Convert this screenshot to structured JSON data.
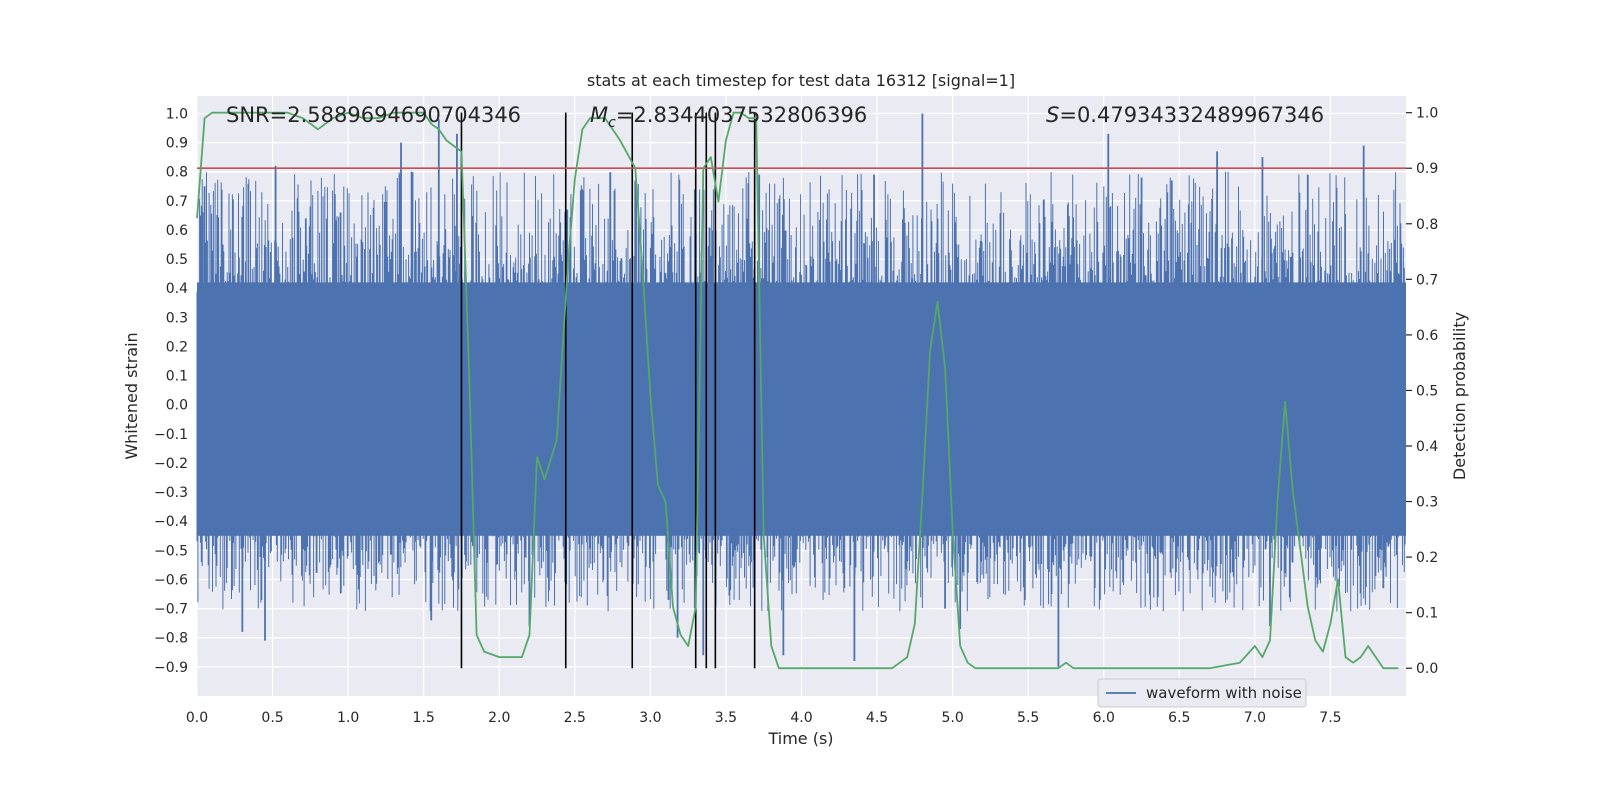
{
  "chart_data": {
    "type": "line",
    "title": "stats at each timestep for test data 16312 [signal=1]",
    "xlabel": "Time (s)",
    "ylabel": "Whitened strain",
    "y2label": "Detection probability",
    "xlim": [
      0.0,
      8.0
    ],
    "ylim": [
      -1.0,
      1.06
    ],
    "y2lim": [
      -0.05,
      1.03
    ],
    "x_ticks": [
      "0.0",
      "0.5",
      "1.0",
      "1.5",
      "2.0",
      "2.5",
      "3.0",
      "3.5",
      "4.0",
      "4.5",
      "5.0",
      "5.5",
      "6.0",
      "6.5",
      "7.0",
      "7.5"
    ],
    "y_ticks": [
      "1.0",
      "0.9",
      "0.8",
      "0.7",
      "0.6",
      "0.5",
      "0.4",
      "0.3",
      "0.2",
      "0.1",
      "0.0",
      "−0.1",
      "−0.2",
      "−0.3",
      "−0.4",
      "−0.5",
      "−0.6",
      "−0.7",
      "−0.8",
      "−0.9"
    ],
    "y2_ticks": [
      "1.0",
      "0.9",
      "0.8",
      "0.7",
      "0.6",
      "0.5",
      "0.4",
      "0.3",
      "0.2",
      "0.1",
      "0.0"
    ],
    "grid": true,
    "legend_placement": "lower-right",
    "annotations": {
      "snr": "SNR=2.5889694690704346",
      "mc_symbol": "M",
      "mc_sub": "c",
      "mc_value": "=2.8344037532806396",
      "s_symbol": "S",
      "s_value": "=0.47934332489967346"
    },
    "series": [
      {
        "name": "waveform with noise",
        "axis": "left",
        "style": "dense-noise",
        "color": "#4c72b0",
        "band": [
          -0.45,
          0.42
        ],
        "envelope_peaks": [
          {
            "x": 0.05,
            "y": 0.75
          },
          {
            "x": 0.17,
            "y": 0.55
          },
          {
            "x": 0.3,
            "y": -0.78
          },
          {
            "x": 0.45,
            "y": -0.81
          },
          {
            "x": 0.52,
            "y": 0.82
          },
          {
            "x": 0.72,
            "y": 0.64
          },
          {
            "x": 0.95,
            "y": 0.66
          },
          {
            "x": 1.35,
            "y": 0.9
          },
          {
            "x": 1.42,
            "y": 0.8
          },
          {
            "x": 1.6,
            "y": 0.98
          },
          {
            "x": 1.72,
            "y": 0.93
          },
          {
            "x": 1.55,
            "y": -0.74
          },
          {
            "x": 2.2,
            "y": -0.76
          },
          {
            "x": 2.45,
            "y": 0.67
          },
          {
            "x": 2.9,
            "y": 0.77
          },
          {
            "x": 3.12,
            "y": -0.67
          },
          {
            "x": 3.18,
            "y": -0.8
          },
          {
            "x": 3.35,
            "y": -0.86
          },
          {
            "x": 3.72,
            "y": 0.79
          },
          {
            "x": 3.88,
            "y": -0.86
          },
          {
            "x": 4.35,
            "y": -0.88
          },
          {
            "x": 4.48,
            "y": 0.79
          },
          {
            "x": 4.95,
            "y": -0.7
          },
          {
            "x": 4.8,
            "y": 1.0
          },
          {
            "x": 5.05,
            "y": -0.77
          },
          {
            "x": 5.7,
            "y": -0.9
          },
          {
            "x": 6.03,
            "y": 0.93
          },
          {
            "x": 6.25,
            "y": 0.78
          },
          {
            "x": 6.45,
            "y": 0.77
          },
          {
            "x": 6.75,
            "y": 0.87
          },
          {
            "x": 7.05,
            "y": 0.85
          },
          {
            "x": 7.1,
            "y": -0.76
          },
          {
            "x": 7.35,
            "y": 0.79
          },
          {
            "x": 7.72,
            "y": 0.89
          },
          {
            "x": 7.85,
            "y": -0.63
          }
        ]
      },
      {
        "name": "",
        "axis": "right",
        "color": "#55a868",
        "x": [
          0.0,
          0.05,
          0.1,
          0.2,
          0.3,
          0.4,
          0.5,
          0.6,
          0.7,
          0.8,
          0.9,
          1.0,
          1.1,
          1.2,
          1.3,
          1.4,
          1.5,
          1.55,
          1.6,
          1.65,
          1.7,
          1.75,
          1.8,
          1.85,
          1.9,
          2.0,
          2.05,
          2.1,
          2.15,
          2.2,
          2.25,
          2.3,
          2.38,
          2.45,
          2.5,
          2.55,
          2.6,
          2.7,
          2.75,
          2.8,
          2.9,
          2.95,
          3.0,
          3.05,
          3.1,
          3.15,
          3.2,
          3.25,
          3.3,
          3.35,
          3.4,
          3.45,
          3.5,
          3.55,
          3.6,
          3.65,
          3.7,
          3.75,
          3.8,
          3.85,
          3.9,
          3.95,
          4.0,
          4.2,
          4.4,
          4.6,
          4.65,
          4.7,
          4.75,
          4.8,
          4.85,
          4.9,
          4.95,
          5.0,
          5.05,
          5.1,
          5.15,
          5.2,
          5.3,
          5.5,
          5.6,
          5.7,
          5.75,
          5.8,
          5.9,
          6.0,
          6.2,
          6.4,
          6.6,
          6.7,
          6.9,
          7.0,
          7.05,
          7.1,
          7.15,
          7.2,
          7.25,
          7.35,
          7.4,
          7.45,
          7.5,
          7.55,
          7.6,
          7.65,
          7.7,
          7.75,
          7.85,
          7.95
        ],
        "values": [
          0.81,
          0.99,
          1.0,
          1.0,
          1.0,
          1.0,
          1.0,
          1.0,
          0.99,
          0.97,
          0.99,
          1.0,
          0.99,
          0.99,
          1.0,
          1.0,
          1.0,
          0.98,
          0.97,
          0.95,
          0.94,
          0.93,
          0.54,
          0.06,
          0.03,
          0.02,
          0.02,
          0.02,
          0.02,
          0.06,
          0.38,
          0.34,
          0.41,
          0.71,
          0.88,
          0.97,
          0.99,
          0.99,
          0.97,
          0.95,
          0.9,
          0.71,
          0.49,
          0.33,
          0.3,
          0.11,
          0.06,
          0.04,
          0.11,
          0.9,
          0.92,
          0.84,
          0.95,
          1.0,
          1.0,
          0.99,
          0.99,
          0.24,
          0.04,
          0.0,
          0.0,
          0.0,
          0.0,
          0.0,
          0.0,
          0.0,
          0.01,
          0.02,
          0.08,
          0.31,
          0.57,
          0.66,
          0.54,
          0.25,
          0.04,
          0.01,
          0.0,
          0.0,
          0.0,
          0.0,
          0.0,
          0.0,
          0.01,
          0.0,
          0.0,
          0.0,
          0.0,
          0.0,
          0.0,
          0.0,
          0.01,
          0.04,
          0.02,
          0.05,
          0.3,
          0.48,
          0.32,
          0.11,
          0.05,
          0.03,
          0.08,
          0.16,
          0.02,
          0.01,
          0.02,
          0.04,
          0.0,
          0.0
        ]
      }
    ],
    "hlines": [
      {
        "axis": "right",
        "y": 0.9,
        "color": "#c44e52"
      }
    ],
    "vlines": [
      1.75,
      2.44,
      2.88,
      3.3,
      3.37,
      3.43,
      3.69
    ]
  }
}
